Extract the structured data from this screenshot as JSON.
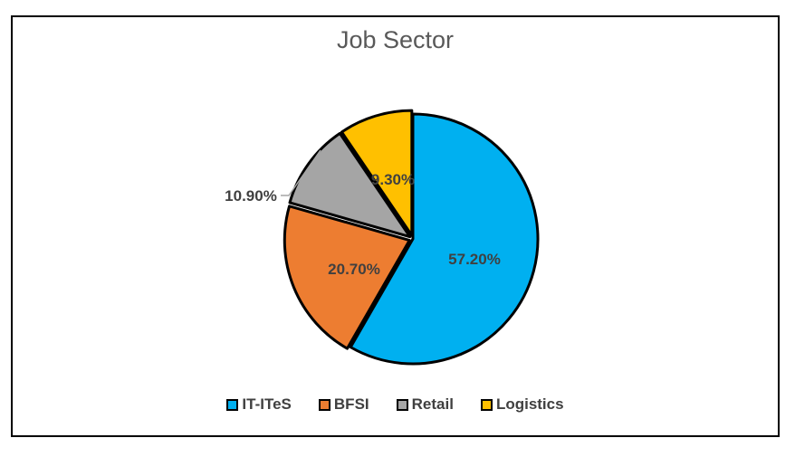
{
  "chart_data": {
    "type": "pie",
    "title": "Job Sector",
    "categories": [
      "IT-ITeS",
      "BFSI",
      "Retail",
      "Logistics"
    ],
    "values": [
      57.2,
      20.7,
      10.9,
      9.3
    ],
    "data_labels": [
      "57.20%",
      "20.70%",
      "10.90%",
      "9.30%"
    ],
    "colors": [
      "#00B0F0",
      "#ED7D31",
      "#A5A5A5",
      "#FFC000"
    ],
    "legend_position": "bottom",
    "start_angle": "12 o'clock",
    "direction": "clockwise"
  }
}
